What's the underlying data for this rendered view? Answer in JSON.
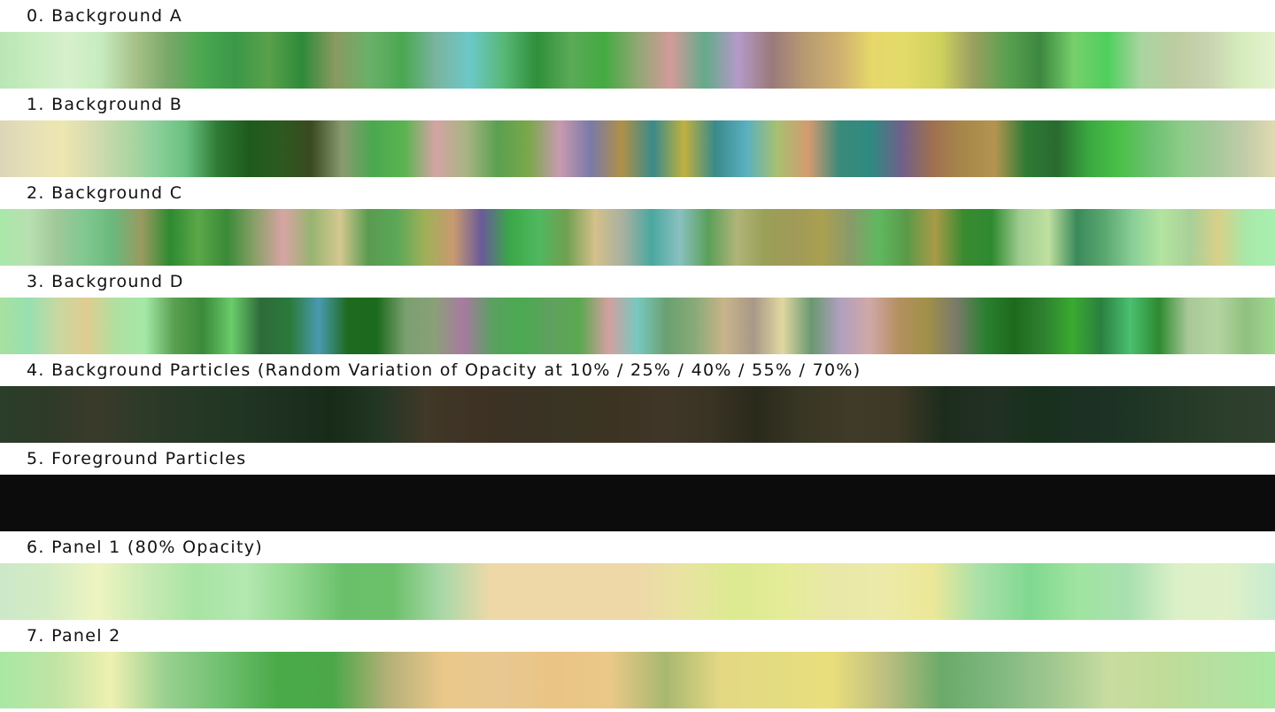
{
  "gradients": [
    {
      "label": "0. Background A",
      "stops": [
        "#b9e6b4",
        "#c8ecc0",
        "#d6f0cc",
        "#c7ecc0",
        "#a8c28a",
        "#7aa86a",
        "#4aa850",
        "#3a9848",
        "#5aa04a",
        "#2e8a3a",
        "#8a9a60",
        "#6ab06a",
        "#4aa850",
        "#7ab4a0",
        "#6cc8c8",
        "#58b878",
        "#2f8f3a",
        "#5aaa58",
        "#44aa40",
        "#8fa874",
        "#d49a9a",
        "#64aa8a",
        "#b49ac8",
        "#9a7a7a",
        "#b89a72",
        "#cfb070",
        "#e6d86a",
        "#e2da6a",
        "#d0d25e",
        "#9aa060",
        "#5aa050",
        "#3c8840",
        "#77cf6b",
        "#4fcf5d",
        "#a8d4a0",
        "#bccca0",
        "#c8d2b0",
        "#d6ecbc",
        "#e4f2d0"
      ]
    },
    {
      "label": "1. Background B",
      "stops": [
        "#dcd6b8",
        "#e6e0b8",
        "#eee6b0",
        "#d4dbb0",
        "#b4d6a4",
        "#8cd09a",
        "#69c080",
        "#2e7a34",
        "#1e5a1c",
        "#2c5a20",
        "#3a4a20",
        "#8a9a70",
        "#4aa850",
        "#5ab450",
        "#d4a4a4",
        "#a8b484",
        "#5aa050",
        "#7aa84a",
        "#c89ab0",
        "#7a7aa8",
        "#b09048",
        "#3a8a8a",
        "#c0b040",
        "#3a8a8a",
        "#5ab0c0",
        "#a8c070",
        "#d49a70",
        "#3a8a7a",
        "#2e8a80",
        "#70608a",
        "#a07050",
        "#a8884a",
        "#b49450",
        "#2e7a34",
        "#2a6a30",
        "#3aa840",
        "#4ac048",
        "#6cc070",
        "#8ccc88",
        "#a4c89a",
        "#c0cca8",
        "#e0dab0"
      ]
    },
    {
      "label": "2. Background C",
      "stops": [
        "#a8e8a8",
        "#b8e0b0",
        "#a0c89a",
        "#80c890",
        "#6ab87c",
        "#9a9a60",
        "#2e8a30",
        "#5aa848",
        "#3a8a38",
        "#8aa068",
        "#d8a4a4",
        "#98b470",
        "#d4c890",
        "#5a9a50",
        "#5aa858",
        "#a0b058",
        "#c89a70",
        "#6a5a9a",
        "#3aa848",
        "#50b860",
        "#70a050",
        "#d4c08a",
        "#a8b0a0",
        "#4aa8a0",
        "#8ac0c0",
        "#5aa05a",
        "#b0b478",
        "#9aa058",
        "#a09a58",
        "#aaa050",
        "#8a9a6a",
        "#60b860",
        "#5a9a48",
        "#aa9a48",
        "#3a8a30",
        "#2e8a30",
        "#a0cc90",
        "#c0e0a0",
        "#3a8a5a",
        "#5aa870",
        "#8ad098",
        "#b4e4a0",
        "#a8d098",
        "#d8d088",
        "#a8e8a8",
        "#a8f0b0"
      ]
    },
    {
      "label": "3. Background D",
      "stops": [
        "#a8e0a0",
        "#98e0b0",
        "#c8d8a0",
        "#e0cc90",
        "#b0e0a0",
        "#a4e8a8",
        "#5aa050",
        "#3a8a3a",
        "#6acc6a",
        "#2e6a3a",
        "#2a7a3a",
        "#4a9ab0",
        "#1e6a20",
        "#1c6a1c",
        "#7aa070",
        "#8aa078",
        "#a87aa0",
        "#5aa060",
        "#4aaa50",
        "#60a060",
        "#5aa850",
        "#d4a0a0",
        "#78c8c0",
        "#6aa070",
        "#8aaa78",
        "#c8b48a",
        "#a89888",
        "#e0d8a0",
        "#6a9870",
        "#b0a0c0",
        "#d0a8a8",
        "#b49060",
        "#a09048",
        "#7a7a6a",
        "#2a8030",
        "#1e6a1c",
        "#2e8030",
        "#3aaa30",
        "#2a8040",
        "#4ac070",
        "#2e8a30",
        "#a8c898",
        "#b4d4a0",
        "#90c080",
        "#a0d890"
      ]
    },
    {
      "label": "4. Background Particles (Random Variation of Opacity at 10% / 25% / 40% / 55% / 70%)",
      "stops": [
        "#2a3e2a",
        "#2e3a28",
        "#3a3a2a",
        "#2e3a28",
        "#263826",
        "#223624",
        "#1e3020",
        "#182a18",
        "#223624",
        "#403828",
        "#3e3224",
        "#3a3224",
        "#3a3424",
        "#3c3322",
        "#403628",
        "#3a3424",
        "#2a2a1c",
        "#383624",
        "#403a28",
        "#3e3826",
        "#1c2c1c",
        "#223024",
        "#18301c",
        "#1c3024",
        "#1e3424",
        "#263a28",
        "#2c3e2c",
        "#304030"
      ]
    },
    {
      "label": "5. Foreground Particles",
      "stops": [
        "#0c0c0c",
        "#0c0c0c"
      ]
    },
    {
      "label": "6. Panel 1 (80% Opacity)",
      "stops": [
        "#cce8c8",
        "#d4ecc4",
        "#eef4c0",
        "#c8eab4",
        "#a8e4a4",
        "#b4e8b0",
        "#92d890",
        "#6ac06a",
        "#6cc06a",
        "#a8d8a8",
        "#eed8a8",
        "#eed8a8",
        "#eed8a8",
        "#eed8a8",
        "#e8e4a0",
        "#dcea90",
        "#e4ec98",
        "#eae8a8",
        "#eceaa8",
        "#ece898",
        "#a8e0a8",
        "#80d890",
        "#a0e4a0",
        "#a8e0b0",
        "#dcf0c8",
        "#e0f0c8",
        "#c8ecd0"
      ]
    },
    {
      "label": "7. Panel 2",
      "stops": [
        "#a8e8a4",
        "#c0e4a4",
        "#eef0b0",
        "#98d090",
        "#70c070",
        "#4aaa48",
        "#4aa848",
        "#b4b078",
        "#eac88a",
        "#e8c890",
        "#eac484",
        "#eac888",
        "#a8b870",
        "#e4d884",
        "#e4dc80",
        "#eade7c",
        "#bcbe80",
        "#6aaa6a",
        "#80b880",
        "#a0c890",
        "#c8dca0",
        "#c0dc98",
        "#b4e0a0",
        "#a8e8a0"
      ]
    }
  ]
}
